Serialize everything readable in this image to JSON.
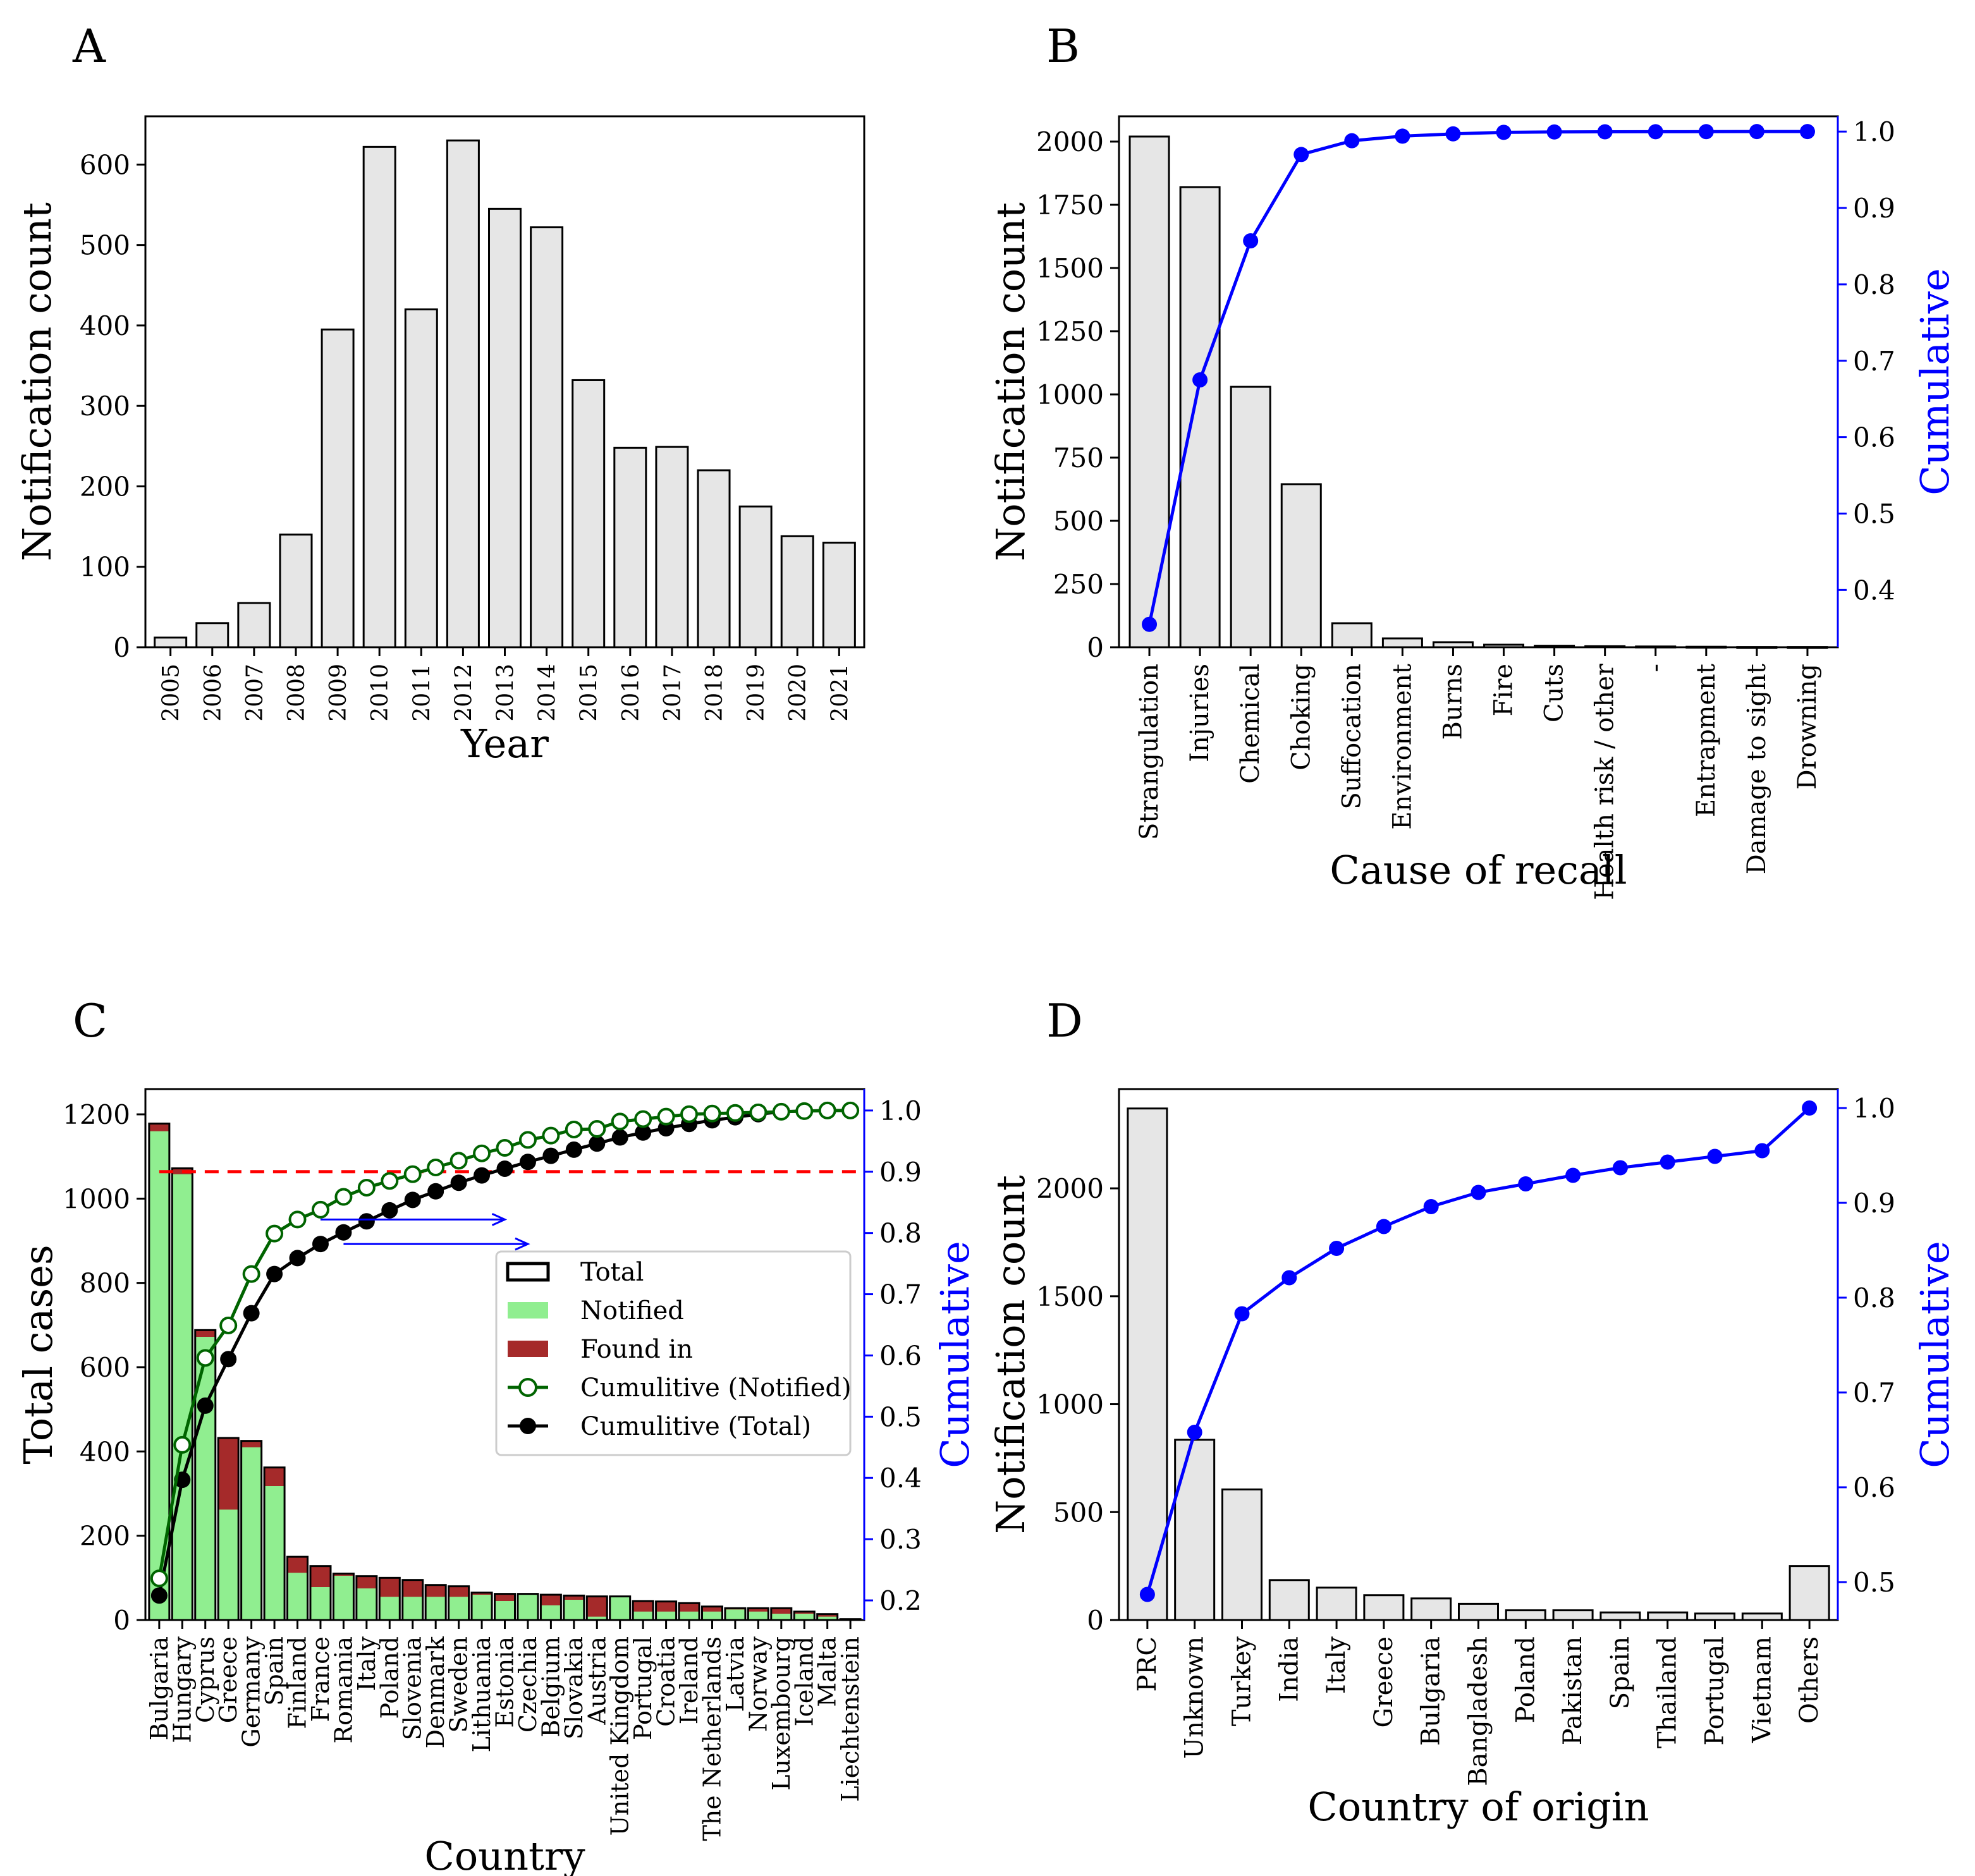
{
  "colors": {
    "bar_fill": "#e6e6e6",
    "bar_stroke": "#000000",
    "cumulative": "#0000ff",
    "notified": "#90ee90",
    "found": "#a52a2a",
    "cum_notified": "#006400",
    "cum_total": "#000000",
    "threshold": "#ff0000"
  },
  "panels": {
    "A": "A",
    "B": "B",
    "C": "C",
    "D": "D"
  },
  "chart_data": [
    {
      "id": "A",
      "type": "bar",
      "panel_label": "A",
      "title": "",
      "xlabel": "Year",
      "ylabel": "Notification count",
      "categories": [
        "2005",
        "2006",
        "2007",
        "2008",
        "2009",
        "2010",
        "2011",
        "2012",
        "2013",
        "2014",
        "2015",
        "2016",
        "2017",
        "2018",
        "2019",
        "2020",
        "2021"
      ],
      "values": [
        12,
        30,
        55,
        140,
        395,
        622,
        420,
        630,
        545,
        522,
        332,
        248,
        249,
        220,
        175,
        138,
        130
      ],
      "ylim": [
        0,
        660
      ],
      "yticks": [
        0,
        100,
        200,
        300,
        400,
        500,
        600
      ]
    },
    {
      "id": "B",
      "type": "bar",
      "panel_label": "B",
      "title": "",
      "xlabel": "Cause of recall",
      "ylabel": "Notification count",
      "y2label": "Cumulative",
      "categories": [
        "Strangulation",
        "Injuries",
        "Chemical",
        "Choking",
        "Suffocation",
        "Environment",
        "Burns",
        "Fire",
        "Cuts",
        "Health risk / other",
        "-",
        "Entrapment",
        "Damage to sight",
        "Drowning"
      ],
      "values": [
        2020,
        1820,
        1030,
        645,
        95,
        35,
        20,
        10,
        6,
        4,
        3,
        2,
        1,
        1
      ],
      "cumulative": [
        0.355,
        0.675,
        0.857,
        0.97,
        0.988,
        0.994,
        0.997,
        0.999,
        0.9995,
        0.9997,
        0.9998,
        0.9999,
        1.0,
        1.0
      ],
      "ylim": [
        0,
        2100
      ],
      "yticks": [
        0,
        250,
        500,
        750,
        1000,
        1250,
        1500,
        1750,
        2000
      ],
      "y2lim": [
        0.325,
        1.02
      ],
      "y2ticks": [
        0.4,
        0.5,
        0.6,
        0.7,
        0.8,
        0.9,
        1.0
      ]
    },
    {
      "id": "C",
      "type": "bar",
      "panel_label": "C",
      "title": "",
      "xlabel": "Country",
      "ylabel": "Total cases",
      "y2label": "Cumulative",
      "categories": [
        "Bulgaria",
        "Hungary",
        "Cyprus",
        "Greece",
        "Germany",
        "Spain",
        "Finland",
        "France",
        "Romania",
        "Italy",
        "Poland",
        "Slovenia",
        "Denmark",
        "Sweden",
        "Lithuania",
        "Estonia",
        "Czechia",
        "Belgium",
        "Slovakia",
        "Austria",
        "United Kingdom",
        "Portugal",
        "Croatia",
        "Ireland",
        "The Netherlands",
        "Latvia",
        "Norway",
        "Luxembourg",
        "Iceland",
        "Malta",
        "Liechtenstein"
      ],
      "series": [
        {
          "name": "Total",
          "values": [
            1178,
            1072,
            688,
            432,
            425,
            362,
            150,
            128,
            110,
            104,
            100,
            95,
            83,
            80,
            65,
            62,
            62,
            60,
            58,
            56,
            56,
            45,
            44,
            40,
            32,
            28,
            28,
            28,
            20,
            14,
            2
          ]
        },
        {
          "name": "Notified",
          "values": [
            1160,
            1058,
            672,
            262,
            410,
            318,
            112,
            78,
            105,
            75,
            55,
            55,
            55,
            55,
            60,
            45,
            62,
            35,
            48,
            8,
            56,
            20,
            20,
            20,
            20,
            25,
            20,
            15,
            15,
            8,
            2
          ]
        },
        {
          "name": "Cumulitive (Notified)",
          "values": [
            0.236,
            0.454,
            0.596,
            0.649,
            0.733,
            0.799,
            0.822,
            0.838,
            0.859,
            0.874,
            0.885,
            0.896,
            0.907,
            0.918,
            0.93,
            0.939,
            0.952,
            0.959,
            0.969,
            0.97,
            0.982,
            0.986,
            0.99,
            0.994,
            0.995,
            0.996,
            0.997,
            0.998,
            0.999,
            1.0,
            1.0
          ]
        },
        {
          "name": "Cumulitive (Total)",
          "values": [
            0.208,
            0.397,
            0.518,
            0.594,
            0.669,
            0.733,
            0.759,
            0.782,
            0.801,
            0.819,
            0.837,
            0.854,
            0.868,
            0.882,
            0.894,
            0.905,
            0.916,
            0.926,
            0.936,
            0.946,
            0.956,
            0.964,
            0.971,
            0.978,
            0.984,
            0.989,
            0.994,
            0.998,
            0.999,
            1.0,
            1.0
          ]
        }
      ],
      "threshold": 0.9,
      "legend": [
        "Total",
        "Notified",
        "Found in",
        "Cumulitive (Notified)",
        "Cumulitive (Total)"
      ],
      "legend_position": "center-right",
      "ylim": [
        0,
        1260
      ],
      "yticks": [
        0,
        200,
        400,
        600,
        800,
        1000,
        1200
      ],
      "y2lim": [
        0.168,
        1.035
      ],
      "y2ticks": [
        0.2,
        0.3,
        0.4,
        0.5,
        0.6,
        0.7,
        0.8,
        0.9,
        1.0
      ],
      "arrows": [
        {
          "from_index": 7,
          "to_index": 15,
          "level": 0.822
        },
        {
          "from_index": 8,
          "to_index": 16,
          "level": 0.782
        }
      ]
    },
    {
      "id": "D",
      "type": "bar",
      "panel_label": "D",
      "title": "",
      "xlabel": "Country of origin",
      "ylabel": "Notification count",
      "y2label": "Cumulative",
      "categories": [
        "PRC",
        "Unknown",
        "Turkey",
        "India",
        "Italy",
        "Greece",
        "Bulgaria",
        "Bangladesh",
        "Poland",
        "Pakistan",
        "Spain",
        "Thailand",
        "Portugal",
        "Vietnam",
        "Others"
      ],
      "values": [
        2370,
        835,
        605,
        185,
        150,
        115,
        100,
        75,
        45,
        45,
        35,
        35,
        30,
        30,
        250
      ],
      "cumulative": [
        0.487,
        0.658,
        0.783,
        0.821,
        0.852,
        0.875,
        0.896,
        0.911,
        0.92,
        0.929,
        0.937,
        0.943,
        0.949,
        0.955,
        1.0
      ],
      "ylim": [
        0,
        2460
      ],
      "yticks": [
        0,
        500,
        1000,
        1500,
        2000
      ],
      "y2lim": [
        0.46,
        1.02
      ],
      "y2ticks": [
        0.5,
        0.6,
        0.7,
        0.8,
        0.9,
        1.0
      ]
    }
  ]
}
